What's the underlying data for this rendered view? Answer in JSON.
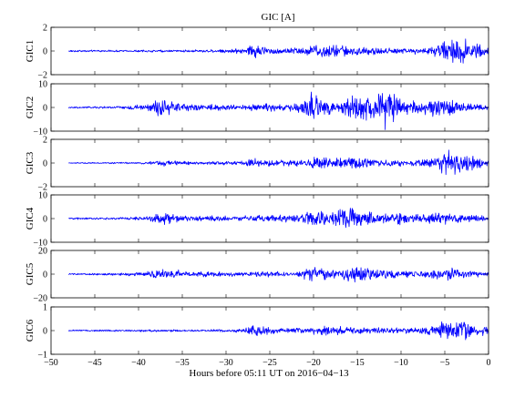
{
  "figure": {
    "title": "GIC [A]",
    "xlabel": "Hours before  05:11 UT on 2016−04−13"
  },
  "chart_data": {
    "type": "line",
    "title": "GIC [A]",
    "xlabel": "Hours before  05:11 UT on 2016−04−13",
    "xlim": [
      -50,
      0
    ],
    "xticks": [
      -50,
      -45,
      -40,
      -35,
      -30,
      -25,
      -20,
      -15,
      -10,
      -5,
      0
    ],
    "xtick_labels": [
      "−50",
      "−45",
      "−40",
      "−35",
      "−30",
      "−25",
      "−20",
      "−15",
      "−10",
      "−5",
      "0"
    ],
    "data_start": -48,
    "color": "#0000ff",
    "grid": false,
    "legend": "none",
    "panels": [
      {
        "ylabel": "GIC1",
        "ylim": [
          -2,
          2
        ],
        "yticks": [
          -2,
          0,
          2
        ],
        "ytick_labels": [
          "−2",
          "0",
          "2"
        ],
        "approx_max": 1.6,
        "approx_min": -1.3,
        "activity": [
          [
            -48,
            0.08
          ],
          [
            -40,
            0.1
          ],
          [
            -33,
            0.12
          ],
          [
            -28,
            0.25
          ],
          [
            -27.3,
            0.75
          ],
          [
            -25,
            0.3
          ],
          [
            -22,
            0.35
          ],
          [
            -20,
            0.55
          ],
          [
            -18.5,
            0.65
          ],
          [
            -16,
            0.55
          ],
          [
            -13,
            0.35
          ],
          [
            -10,
            0.28
          ],
          [
            -7,
            0.3
          ],
          [
            -5,
            0.9
          ],
          [
            -3.8,
            1.5
          ],
          [
            -2,
            0.8
          ],
          [
            0,
            0.45
          ]
        ]
      },
      {
        "ylabel": "GIC2",
        "ylim": [
          -10,
          10
        ],
        "yticks": [
          -10,
          0,
          10
        ],
        "ytick_labels": [
          "−10",
          "0",
          "10"
        ],
        "approx_max": 9.2,
        "approx_min": -9.5,
        "activity": [
          [
            -48,
            0.4
          ],
          [
            -42,
            0.6
          ],
          [
            -39,
            1.6
          ],
          [
            -37.5,
            4.5
          ],
          [
            -35,
            1.8
          ],
          [
            -28,
            1.2
          ],
          [
            -26,
            2.0
          ],
          [
            -23,
            1.5
          ],
          [
            -21,
            3.5
          ],
          [
            -20,
            8.5
          ],
          [
            -19,
            4.0
          ],
          [
            -17,
            3.2
          ],
          [
            -15.5,
            7.0
          ],
          [
            -13,
            6.5
          ],
          [
            -11,
            7.2
          ],
          [
            -9,
            3.0
          ],
          [
            -7,
            3.5
          ],
          [
            -5,
            5.0
          ],
          [
            -3,
            2.0
          ],
          [
            0,
            1.2
          ]
        ]
      },
      {
        "ylabel": "GIC3",
        "ylim": [
          -2,
          2
        ],
        "yticks": [
          -2,
          0,
          2
        ],
        "ytick_labels": [
          "−2",
          "0",
          "2"
        ],
        "approx_max": 1.7,
        "approx_min": -1.8,
        "activity": [
          [
            -48,
            0.05
          ],
          [
            -40,
            0.08
          ],
          [
            -37,
            0.25
          ],
          [
            -33,
            0.15
          ],
          [
            -28,
            0.2
          ],
          [
            -27,
            0.45
          ],
          [
            -24,
            0.3
          ],
          [
            -21,
            0.3
          ],
          [
            -20,
            0.6
          ],
          [
            -17.5,
            0.45
          ],
          [
            -15,
            0.55
          ],
          [
            -12,
            0.3
          ],
          [
            -9,
            0.25
          ],
          [
            -6,
            0.55
          ],
          [
            -4.5,
            1.5
          ],
          [
            -3,
            0.9
          ],
          [
            0,
            0.4
          ]
        ]
      },
      {
        "ylabel": "GIC4",
        "ylim": [
          -10,
          10
        ],
        "yticks": [
          -10,
          0,
          10
        ],
        "ytick_labels": [
          "−10",
          "0",
          "10"
        ],
        "approx_max": 9.5,
        "approx_min": -6.5,
        "activity": [
          [
            -48,
            0.4
          ],
          [
            -42,
            0.6
          ],
          [
            -39,
            1.0
          ],
          [
            -37.5,
            3.2
          ],
          [
            -35,
            1.3
          ],
          [
            -28,
            1.3
          ],
          [
            -24,
            1.8
          ],
          [
            -22,
            1.6
          ],
          [
            -20,
            3.8
          ],
          [
            -18,
            2.6
          ],
          [
            -15.5,
            6.5
          ],
          [
            -14,
            3.5
          ],
          [
            -12,
            2.8
          ],
          [
            -9,
            2.0
          ],
          [
            -7,
            2.2
          ],
          [
            -5,
            3.5
          ],
          [
            -3,
            1.8
          ],
          [
            0,
            1.2
          ]
        ]
      },
      {
        "ylabel": "GIC5",
        "ylim": [
          -20,
          20
        ],
        "yticks": [
          -20,
          0,
          20
        ],
        "ytick_labels": [
          "−20",
          "0",
          "20"
        ],
        "approx_max": 14,
        "approx_min": -14,
        "activity": [
          [
            -48,
            0.6
          ],
          [
            -42,
            1.2
          ],
          [
            -39,
            2.5
          ],
          [
            -37,
            5.5
          ],
          [
            -35,
            2.5
          ],
          [
            -28,
            2.2
          ],
          [
            -26,
            2.8
          ],
          [
            -22,
            2.2
          ],
          [
            -20,
            9.0
          ],
          [
            -19,
            5.5
          ],
          [
            -17,
            4.0
          ],
          [
            -15.5,
            8.0
          ],
          [
            -13,
            5.5
          ],
          [
            -10,
            3.0
          ],
          [
            -7,
            4.0
          ],
          [
            -4.5,
            7.0
          ],
          [
            -3,
            4.0
          ],
          [
            0,
            2.0
          ]
        ]
      },
      {
        "ylabel": "GIC6",
        "ylim": [
          -1,
          1
        ],
        "yticks": [
          -1,
          0,
          1
        ],
        "ytick_labels": [
          "−1",
          "0",
          "1"
        ],
        "approx_max": 0.6,
        "approx_min": -0.55,
        "activity": [
          [
            -48,
            0.03
          ],
          [
            -40,
            0.05
          ],
          [
            -32,
            0.05
          ],
          [
            -28,
            0.1
          ],
          [
            -27,
            0.3
          ],
          [
            -24,
            0.12
          ],
          [
            -21,
            0.12
          ],
          [
            -19,
            0.22
          ],
          [
            -16,
            0.2
          ],
          [
            -13,
            0.15
          ],
          [
            -10,
            0.12
          ],
          [
            -7,
            0.2
          ],
          [
            -5,
            0.45
          ],
          [
            -4,
            0.5
          ],
          [
            -2,
            0.35
          ],
          [
            0,
            0.25
          ]
        ]
      }
    ]
  }
}
